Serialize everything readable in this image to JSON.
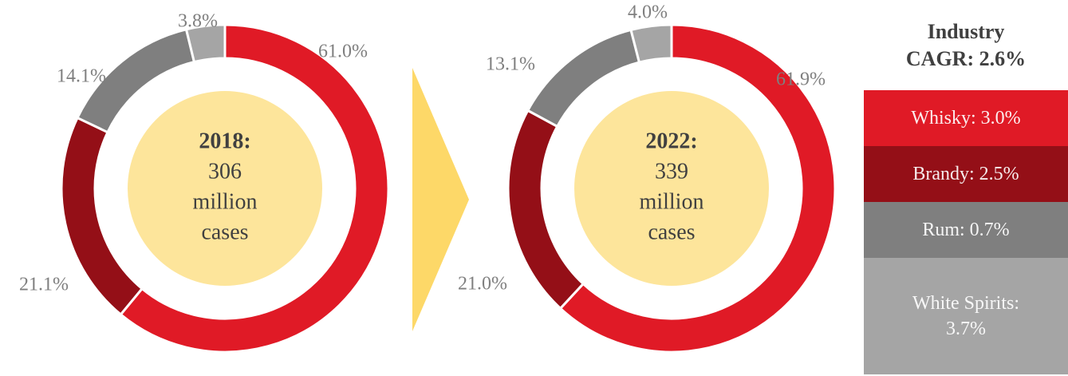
{
  "chart_data": [
    {
      "type": "pie",
      "center_title": "2018:",
      "center_lines": [
        "306",
        "million",
        "cases"
      ],
      "values": [
        61.0,
        21.1,
        14.1,
        3.8
      ],
      "value_labels": [
        "61.0%",
        "21.1%",
        "14.1%",
        "3.8%"
      ],
      "colors": [
        "#e01a26",
        "#940f17",
        "#7f7f7f",
        "#a5a5a5"
      ]
    },
    {
      "type": "pie",
      "center_title": "2022:",
      "center_lines": [
        "339",
        "million",
        "cases"
      ],
      "values": [
        61.9,
        21.0,
        13.1,
        4.0
      ],
      "value_labels": [
        "61.9%",
        "21.0%",
        "13.1%",
        "4.0%"
      ],
      "colors": [
        "#e01a26",
        "#940f17",
        "#7f7f7f",
        "#a5a5a5"
      ]
    }
  ],
  "legend": {
    "title": "Industry CAGR: 2.6%",
    "items": [
      {
        "label": "Whisky: 3.0%",
        "color": "#e01a26"
      },
      {
        "label": "Brandy: 2.5%",
        "color": "#940f17"
      },
      {
        "label": "Rum: 0.7%",
        "color": "#7f7f7f"
      },
      {
        "label": "White Spirits: 3.7%",
        "color": "#a5a5a5"
      }
    ]
  }
}
